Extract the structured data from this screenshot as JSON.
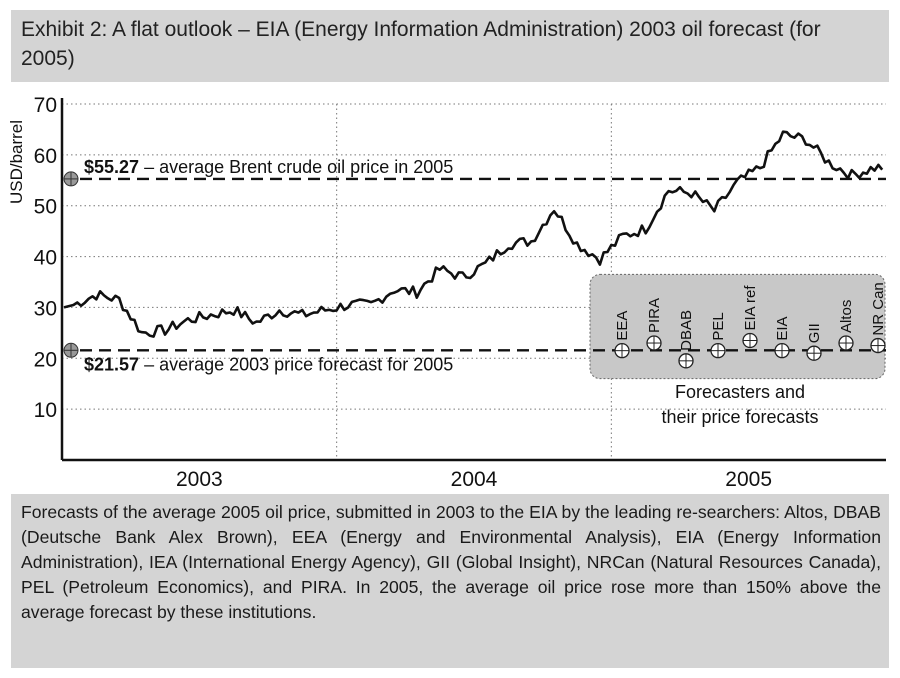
{
  "header": {
    "title": "Exhibit 2: A flat outlook – EIA (Energy Information Administration) 2003 oil forecast (for 2005)"
  },
  "caption": {
    "text": "Forecasts of the average 2005 oil price, submitted in 2003 to the EIA  by the leading re-searchers: Altos, DBAB (Deutsche Bank Alex Brown), EEA (Energy and Environmental Analysis), EIA (Energy Information Administration), IEA (International Energy Agency), GII (Global Insight), NRCan (Natural Resources Canada), PEL (Petroleum Economics), and PIRA. In 2005, the average oil price rose more than 150% above the average forecast by these institutions."
  },
  "chart_data": {
    "type": "line",
    "ylabel": "USD/barrel",
    "xlabel": "",
    "ylim": [
      0,
      70
    ],
    "yticks": [
      10,
      20,
      30,
      40,
      50,
      60,
      70
    ],
    "x_categories": [
      "2003",
      "2004",
      "2005"
    ],
    "grid": "dotted",
    "colors": {
      "line": "#111111",
      "box": "#c8c8c8",
      "panel": "#d4d4d4"
    },
    "series": [
      {
        "values_by_month": [
          [
            "2003-01",
            30.5
          ],
          [
            "2003-02",
            32.5
          ],
          [
            "2003-03",
            31.5
          ],
          [
            "2003-04",
            25.0
          ],
          [
            "2003-05",
            25.5
          ],
          [
            "2003-06",
            27.5
          ],
          [
            "2003-07",
            28.5
          ],
          [
            "2003-08",
            29.5
          ],
          [
            "2003-09",
            27.0
          ],
          [
            "2003-10",
            29.5
          ],
          [
            "2003-11",
            28.5
          ],
          [
            "2003-12",
            29.5
          ],
          [
            "2004-01",
            30.5
          ],
          [
            "2004-02",
            30.5
          ],
          [
            "2004-03",
            33.5
          ],
          [
            "2004-04",
            33.0
          ],
          [
            "2004-05",
            37.5
          ],
          [
            "2004-06",
            36.0
          ],
          [
            "2004-07",
            38.5
          ],
          [
            "2004-08",
            42.5
          ],
          [
            "2004-09",
            43.0
          ],
          [
            "2004-10",
            49.5
          ],
          [
            "2004-11",
            42.5
          ],
          [
            "2004-12",
            39.5
          ],
          [
            "2005-01",
            44.0
          ],
          [
            "2005-02",
            45.5
          ],
          [
            "2005-03",
            53.0
          ],
          [
            "2005-04",
            52.5
          ],
          [
            "2005-05",
            49.0
          ],
          [
            "2005-06",
            54.5
          ],
          [
            "2005-07",
            57.5
          ],
          [
            "2005-08",
            64.0
          ],
          [
            "2005-09",
            63.0
          ],
          [
            "2005-10",
            58.5
          ],
          [
            "2005-11",
            56.0
          ],
          [
            "2005-12",
            57.5
          ]
        ]
      }
    ],
    "reference_lines": [
      {
        "value": 55.27,
        "label_bold": "$55.27",
        "label_rest": " – average Brent crude oil price in 2005"
      },
      {
        "value": 21.57,
        "label_bold": "$21.57",
        "label_rest": " – average 2003 price forecast for 2005"
      }
    ],
    "forecasters": [
      {
        "name": "EEA",
        "value": 21.5
      },
      {
        "name": "PIRA",
        "value": 23.0
      },
      {
        "name": "DBAB",
        "value": 19.5
      },
      {
        "name": "PEL",
        "value": 21.5
      },
      {
        "name": "EIA ref",
        "value": 23.5
      },
      {
        "name": "EIA",
        "value": 21.5
      },
      {
        "name": "GII",
        "value": 21.0
      },
      {
        "name": "Altos",
        "value": 23.0
      },
      {
        "name": "NR Can",
        "value": 22.5
      }
    ],
    "annotation": {
      "line1": "Forecasters and",
      "line2": "their price forecasts"
    }
  }
}
